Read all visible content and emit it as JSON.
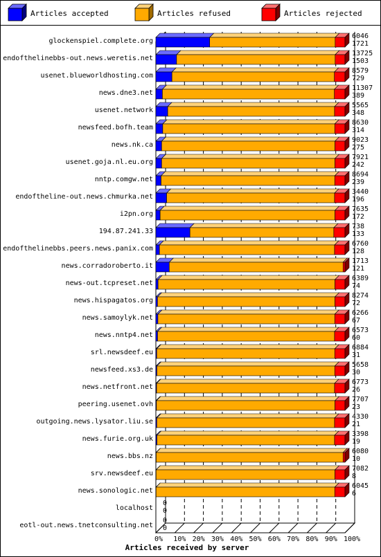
{
  "chart_data": {
    "type": "bar",
    "orientation": "horizontal",
    "stacked": true,
    "xlabel": "Articles received by server",
    "xlim": [
      0,
      100
    ],
    "x_ticks": [
      "0%",
      "10%",
      "20%",
      "30%",
      "40%",
      "50%",
      "60%",
      "70%",
      "80%",
      "90%",
      "100%"
    ],
    "legend_position": "top",
    "series": [
      {
        "name": "Articles accepted",
        "color": "#0000ff"
      },
      {
        "name": "Articles refused",
        "color": "#ffaa00"
      },
      {
        "name": "Articles rejected",
        "color": "#ff0000"
      }
    ],
    "categories": [
      "glockenspiel.complete.org",
      "endofthelinebbs-out.news.weretis.net",
      "usenet.blueworldhosting.com",
      "news.dne3.net",
      "usenet.network",
      "newsfeed.bofh.team",
      "news.nk.ca",
      "usenet.goja.nl.eu.org",
      "nntp.comgw.net",
      "endoftheline-out.news.chmurka.net",
      "i2pn.org",
      "194.87.241.33",
      "endofthelinebbs.peers.news.panix.com",
      "news.corradoroberto.it",
      "news-out.tcpreset.net",
      "news.hispagatos.org",
      "news.samoylyk.net",
      "news.nntp4.net",
      "srl.newsdeef.eu",
      "newsfeed.xs3.de",
      "news.netfront.net",
      "peering.usenet.ovh",
      "outgoing.news.lysator.liu.se",
      "news.furie.org.uk",
      "news.bbs.nz",
      "srv.newsdeef.eu",
      "news.sonologic.net",
      "localhost",
      "eotl-out.news.tnetconsulting.net"
    ],
    "totals": [
      "6046",
      "13725",
      "8579",
      "11307",
      "5565",
      "8630",
      "9023",
      "7921",
      "8694",
      "3440",
      "7635",
      "738",
      "6760",
      "1713",
      "6389",
      "8274",
      "6266",
      "6573",
      "6884",
      "5658",
      "6773",
      "7707",
      "4330",
      "3398",
      "6080",
      "7082",
      "6045",
      "0",
      "0"
    ],
    "accepted": [
      "1721",
      "1503",
      "729",
      "389",
      "348",
      "314",
      "275",
      "242",
      "239",
      "196",
      "172",
      "133",
      "128",
      "121",
      "74",
      "72",
      "67",
      "60",
      "31",
      "30",
      "26",
      "23",
      "21",
      "19",
      "10",
      "8",
      "6",
      "0",
      "0"
    ],
    "rejected_pct": [
      5.2,
      5.2,
      5.6,
      5.6,
      5.5,
      5.4,
      5.3,
      5.3,
      5.4,
      5.5,
      5.3,
      5.9,
      5.5,
      1.0,
      5.3,
      5.3,
      5.4,
      5.5,
      5.4,
      5.4,
      5.5,
      5.3,
      5.5,
      5.5,
      1.0,
      5.3,
      5.4,
      0,
      0
    ]
  }
}
